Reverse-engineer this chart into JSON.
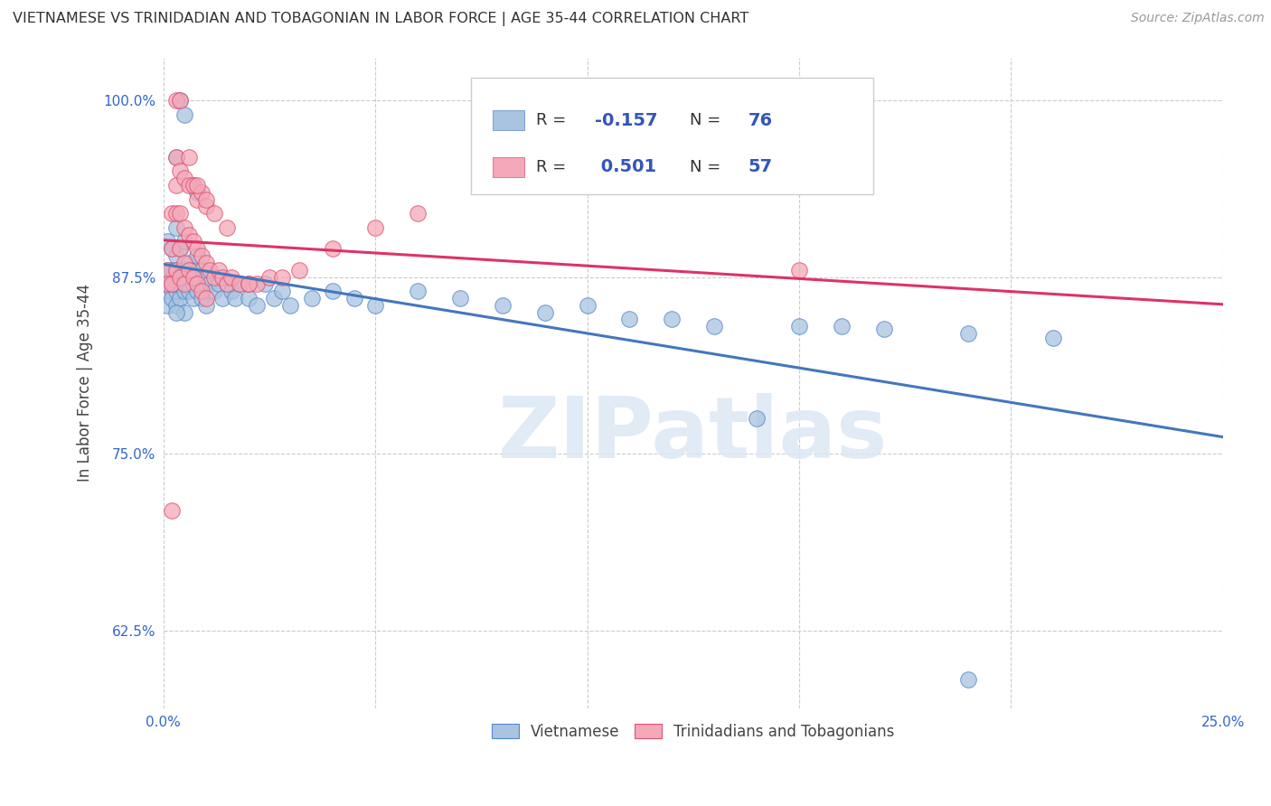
{
  "title": "VIETNAMESE VS TRINIDADIAN AND TOBAGONIAN IN LABOR FORCE | AGE 35-44 CORRELATION CHART",
  "source": "Source: ZipAtlas.com",
  "ylabel": "In Labor Force | Age 35-44",
  "xlim": [
    0.0,
    0.25
  ],
  "ylim": [
    0.57,
    1.03
  ],
  "xticks": [
    0.0,
    0.05,
    0.1,
    0.15,
    0.2,
    0.25
  ],
  "xticklabels": [
    "0.0%",
    "",
    "",
    "",
    "",
    "25.0%"
  ],
  "yticks": [
    0.625,
    0.75,
    0.875,
    1.0
  ],
  "yticklabels": [
    "62.5%",
    "75.0%",
    "87.5%",
    "100.0%"
  ],
  "blue_color": "#A8C4E0",
  "pink_color": "#F4A8B8",
  "blue_edge_color": "#5588CC",
  "pink_edge_color": "#E05070",
  "blue_line_color": "#4477BB",
  "pink_line_color": "#DD3366",
  "watermark_color": "#DCE8F5",
  "blue_x": [
    0.001,
    0.001,
    0.001,
    0.001,
    0.002,
    0.002,
    0.002,
    0.002,
    0.002,
    0.002,
    0.003,
    0.003,
    0.003,
    0.003,
    0.003,
    0.003,
    0.004,
    0.004,
    0.004,
    0.004,
    0.005,
    0.005,
    0.005,
    0.005,
    0.005,
    0.006,
    0.006,
    0.007,
    0.007,
    0.007,
    0.008,
    0.008,
    0.009,
    0.009,
    0.01,
    0.01,
    0.011,
    0.012,
    0.013,
    0.014,
    0.015,
    0.016,
    0.017,
    0.018,
    0.02,
    0.022,
    0.024,
    0.026,
    0.028,
    0.03,
    0.035,
    0.04,
    0.045,
    0.05,
    0.06,
    0.07,
    0.08,
    0.09,
    0.1,
    0.11,
    0.12,
    0.13,
    0.15,
    0.16,
    0.17,
    0.19,
    0.21,
    0.003,
    0.004,
    0.005,
    0.007,
    0.008,
    0.14,
    0.19,
    0.002,
    0.003
  ],
  "blue_y": [
    0.88,
    0.87,
    0.9,
    0.855,
    0.895,
    0.875,
    0.865,
    0.88,
    0.86,
    0.87,
    0.91,
    0.89,
    0.87,
    0.855,
    0.88,
    0.865,
    0.895,
    0.875,
    0.86,
    0.87,
    0.9,
    0.88,
    0.865,
    0.85,
    0.87,
    0.885,
    0.865,
    0.88,
    0.86,
    0.87,
    0.89,
    0.865,
    0.88,
    0.86,
    0.875,
    0.855,
    0.87,
    0.865,
    0.87,
    0.86,
    0.87,
    0.865,
    0.86,
    0.87,
    0.86,
    0.855,
    0.87,
    0.86,
    0.865,
    0.855,
    0.86,
    0.865,
    0.86,
    0.855,
    0.865,
    0.86,
    0.855,
    0.85,
    0.855,
    0.845,
    0.845,
    0.84,
    0.84,
    0.84,
    0.838,
    0.835,
    0.832,
    0.96,
    1.0,
    0.99,
    0.94,
    0.935,
    0.775,
    0.59,
    0.87,
    0.85
  ],
  "pink_x": [
    0.001,
    0.001,
    0.002,
    0.002,
    0.002,
    0.003,
    0.003,
    0.003,
    0.004,
    0.004,
    0.004,
    0.005,
    0.005,
    0.005,
    0.006,
    0.006,
    0.007,
    0.007,
    0.008,
    0.008,
    0.009,
    0.009,
    0.01,
    0.01,
    0.011,
    0.012,
    0.013,
    0.014,
    0.015,
    0.016,
    0.018,
    0.02,
    0.022,
    0.025,
    0.028,
    0.032,
    0.04,
    0.05,
    0.06,
    0.003,
    0.004,
    0.005,
    0.006,
    0.007,
    0.008,
    0.009,
    0.01,
    0.012,
    0.015,
    0.003,
    0.004,
    0.006,
    0.008,
    0.01,
    0.02,
    0.15,
    0.002
  ],
  "pink_y": [
    0.88,
    0.87,
    0.92,
    0.895,
    0.87,
    0.94,
    0.92,
    0.88,
    0.92,
    0.895,
    0.875,
    0.91,
    0.885,
    0.87,
    0.905,
    0.88,
    0.9,
    0.875,
    0.895,
    0.87,
    0.89,
    0.865,
    0.885,
    0.86,
    0.88,
    0.875,
    0.88,
    0.875,
    0.87,
    0.875,
    0.87,
    0.87,
    0.87,
    0.875,
    0.875,
    0.88,
    0.895,
    0.91,
    0.92,
    0.96,
    0.95,
    0.945,
    0.94,
    0.94,
    0.93,
    0.935,
    0.925,
    0.92,
    0.91,
    1.0,
    1.0,
    0.96,
    0.94,
    0.93,
    0.87,
    0.88,
    0.71
  ]
}
